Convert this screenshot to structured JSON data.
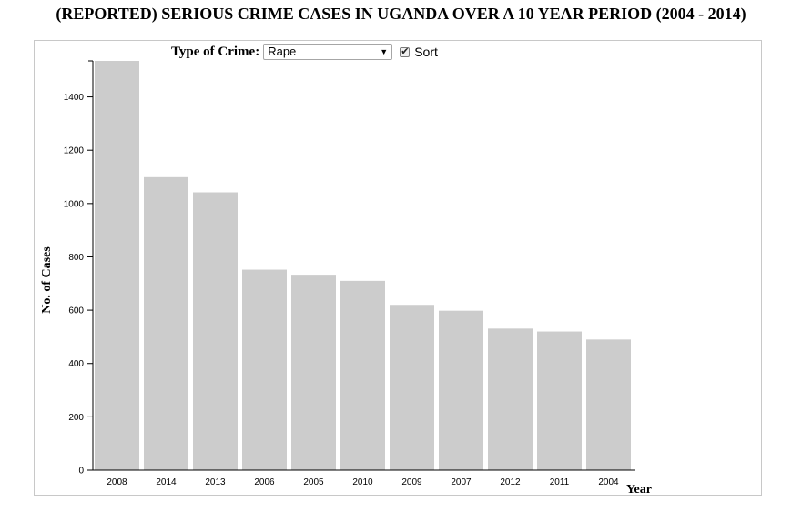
{
  "title": "(REPORTED) SERIOUS CRIME CASES IN UGANDA OVER A 10 YEAR PERIOD (2004 - 2014)",
  "controls": {
    "crime_label": "Type of Crime:",
    "crime_selected": "Rape",
    "sort_label": "Sort",
    "sort_checked": true
  },
  "chart_data": {
    "type": "bar",
    "categories": [
      "2008",
      "2014",
      "2013",
      "2006",
      "2005",
      "2010",
      "2009",
      "2007",
      "2012",
      "2011",
      "2004"
    ],
    "values": [
      1535,
      1099,
      1042,
      752,
      733,
      710,
      620,
      598,
      531,
      520,
      490
    ],
    "xlabel": "Year",
    "ylabel": "No. of Cases",
    "ylim": [
      0,
      1535
    ],
    "yticks": [
      0,
      200,
      400,
      600,
      800,
      1000,
      1200,
      1400
    ],
    "bar_color": "#cccccc",
    "grid": false,
    "legend": "none"
  }
}
